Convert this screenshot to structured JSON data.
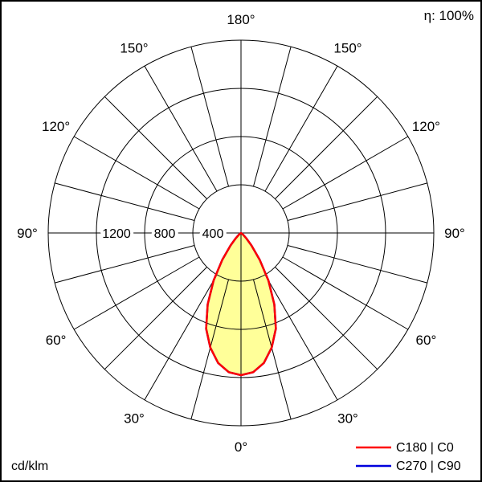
{
  "header": {
    "efficiency": "η: 100%"
  },
  "footer": {
    "units_label": "cd/klm"
  },
  "legend": {
    "items": [
      {
        "label": "C180 | C0",
        "color": "#ff0000"
      },
      {
        "label": "C270 | C90",
        "color": "#0000dd"
      }
    ]
  },
  "chart_data": {
    "type": "polar",
    "subtype": "luminous-intensity-distribution",
    "units": "cd/klm",
    "efficiency": "100%",
    "radial_max": 1600,
    "radial_circles": [
      400,
      800,
      1200,
      1600
    ],
    "radial_tick_labels": [
      {
        "value": 400,
        "label": "400"
      },
      {
        "value": 800,
        "label": "800"
      },
      {
        "value": 1200,
        "label": "1200"
      }
    ],
    "angle_grid_step_deg": 15,
    "angle_tick_labels": [
      {
        "deg": 0,
        "label": "0°"
      },
      {
        "deg": 30,
        "label": "30°"
      },
      {
        "deg": 60,
        "label": "60°"
      },
      {
        "deg": 90,
        "label": "90°"
      },
      {
        "deg": 120,
        "label": "120°"
      },
      {
        "deg": 150,
        "label": "150°"
      },
      {
        "deg": 180,
        "label": "180°"
      }
    ],
    "series": [
      {
        "name": "C180 | C0",
        "color": "#ff0000",
        "fill": "#ffff99",
        "gamma_deg": [
          0,
          5,
          10,
          15,
          20,
          25,
          30,
          35,
          40,
          45,
          50,
          55,
          60
        ],
        "values": [
          1180,
          1160,
          1095,
          985,
          845,
          655,
          455,
          270,
          135,
          60,
          25,
          8,
          0
        ],
        "symmetric": true
      },
      {
        "name": "C270 | C90",
        "color": "#0000dd",
        "fill": "#ffff99",
        "gamma_deg": [
          0,
          5,
          10,
          15,
          20,
          25,
          30,
          35,
          40,
          45,
          50,
          55,
          60
        ],
        "values": [
          1180,
          1160,
          1095,
          985,
          845,
          655,
          455,
          270,
          135,
          60,
          25,
          8,
          0
        ],
        "symmetric": true
      }
    ]
  }
}
